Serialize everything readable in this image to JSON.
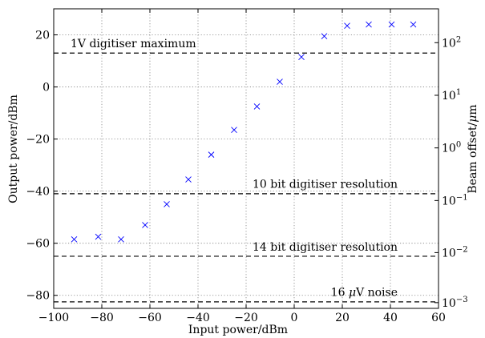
{
  "chart_data": {
    "type": "scatter",
    "title": "",
    "xlabel": "Input power/dBm",
    "ylabel": "Output power/dBm",
    "y2label_parts": [
      "Beam offset/",
      "μ",
      "m"
    ],
    "xlim": [
      -100,
      60
    ],
    "ylim": [
      -85,
      30
    ],
    "xticks": [
      -100,
      -80,
      -60,
      -40,
      -20,
      0,
      20,
      40,
      60
    ],
    "xtick_labels": [
      "−100",
      "−80",
      "−60",
      "−40",
      "−20",
      "0",
      "20",
      "40",
      "60"
    ],
    "yticks": [
      -80,
      -60,
      -40,
      -20,
      0,
      20
    ],
    "ytick_labels": [
      "−80",
      "−60",
      "−40",
      "−20",
      "0",
      "20"
    ],
    "y2_scale": "log",
    "y2_ticks": [
      {
        "left_value": -82.8,
        "base": "10",
        "exp": "−3"
      },
      {
        "left_value": -63.6,
        "base": "10",
        "exp": "−2"
      },
      {
        "left_value": -43.6,
        "base": "10",
        "exp": "−1"
      },
      {
        "left_value": -23.4,
        "base": "10",
        "exp": "0"
      },
      {
        "left_value": -3.2,
        "base": "10",
        "exp": "1"
      },
      {
        "left_value": 17.0,
        "base": "10",
        "exp": "2"
      }
    ],
    "grid": true,
    "marker": "x",
    "marker_color": "#0000ff",
    "series": [
      {
        "x": [
          -91.5,
          -81.5,
          -72,
          -62,
          -53,
          -44,
          -34.5,
          -25,
          -15.5,
          -6,
          3,
          12.5,
          22,
          31,
          40.5,
          49.5
        ],
        "y": [
          -58.5,
          -57.5,
          -58.5,
          -53,
          -45,
          -35.5,
          -26,
          -16.5,
          -7.5,
          2,
          11.5,
          19.5,
          23.5,
          24,
          24,
          24
        ]
      }
    ],
    "reference_lines": [
      {
        "y": 13.0,
        "label_parts": [
          "1V digitiser maximum"
        ],
        "label_x": -93,
        "label_y": 15.2,
        "anchor": "start"
      },
      {
        "y": -41.0,
        "label_parts": [
          "10 bit digitiser resolution"
        ],
        "label_x": 43,
        "label_y": -38.8,
        "anchor": "end"
      },
      {
        "y": -65.0,
        "label_parts": [
          "14 bit digitiser resolution"
        ],
        "label_x": 43,
        "label_y": -62.8,
        "anchor": "end"
      },
      {
        "y": -82.5,
        "label_parts": [
          "16 ",
          "μ",
          "V noise"
        ],
        "label_x": 43,
        "label_y": -80.3,
        "anchor": "end"
      }
    ]
  }
}
